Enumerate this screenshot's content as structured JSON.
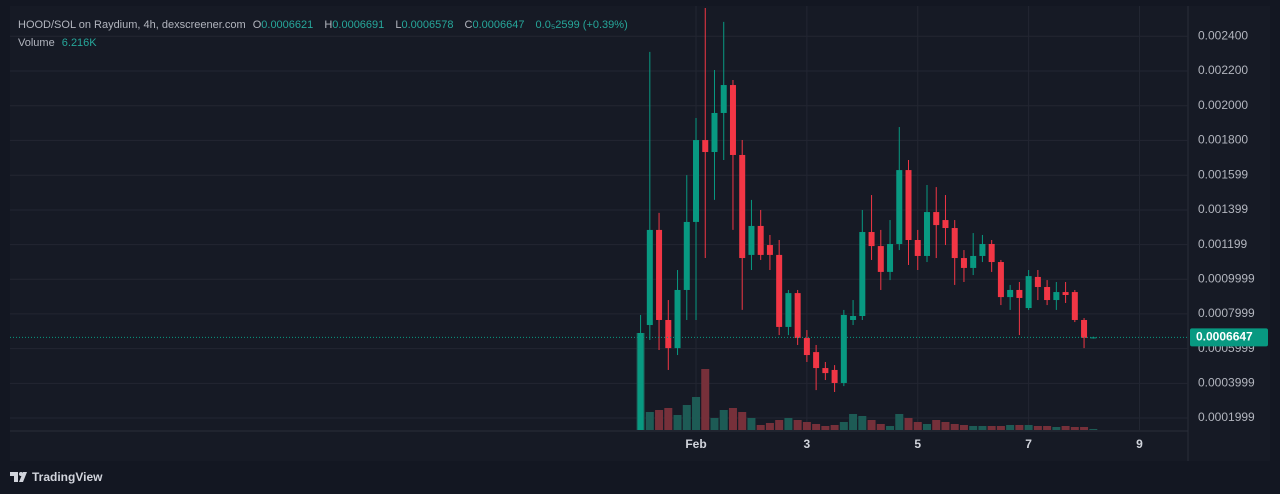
{
  "chart_data": {
    "type": "candlestick",
    "title": "HOOD/SOL on Raydium, 4h, dexscreener.com",
    "ohlc_legend": {
      "open_label": "O",
      "open": 0.0006621,
      "high_label": "H",
      "high": 0.0006691,
      "low_label": "L",
      "low": 0.0006578,
      "close_label": "C",
      "close": 0.0006647,
      "change": "0.0₅2599 (+0.39%)"
    },
    "volume_legend": {
      "label": "Volume",
      "value": "6.216K"
    },
    "x": [
      -24,
      -20,
      -16,
      -12,
      -8,
      -4,
      0,
      4,
      8,
      12,
      16,
      20,
      24,
      28,
      32,
      36,
      40,
      44,
      48,
      52,
      56,
      60,
      64,
      68,
      72,
      76,
      80,
      84,
      88,
      92,
      96,
      100,
      104,
      108,
      112,
      116,
      120,
      124,
      128,
      132,
      136,
      140,
      144,
      148,
      152,
      156,
      160,
      164,
      168,
      172
    ],
    "open": [
      0.000131,
      0.000736,
      0.001284,
      0.000765,
      0.000603,
      0.000938,
      0.00133,
      0.001802,
      0.001733,
      0.001958,
      0.002119,
      0.001716,
      0.00114,
      0.001307,
      0.001197,
      0.00114,
      0.000725,
      0.00092,
      0.000661,
      0.00058,
      0.000488,
      0.000477,
      0.000402,
      0.000765,
      0.000788,
      0.001272,
      0.001191,
      0.001042,
      0.001203,
      0.001629,
      0.001226,
      0.001134,
      0.001387,
      0.001341,
      0.001295,
      0.001122,
      0.001065,
      0.001134,
      0.001203,
      0.001099,
      0.000897,
      0.000938,
      0.000834,
      0.001013,
      0.000955,
      0.00088,
      0.000926,
      0.000926,
      0.000765,
      0.0006621
    ],
    "high": [
      0.000794,
      0.00231,
      0.001382,
      0.00088,
      0.001053,
      0.0016,
      0.001929,
      0.002563,
      0.002206,
      0.002483,
      0.002148,
      0.001802,
      0.001457,
      0.001399,
      0.001255,
      0.001226,
      0.000938,
      0.000938,
      0.000707,
      0.000621,
      0.000523,
      0.000505,
      0.000823,
      0.00088,
      0.001399,
      0.001485,
      0.001284,
      0.001341,
      0.001877,
      0.001687,
      0.001284,
      0.001543,
      0.001531,
      0.001485,
      0.001341,
      0.001168,
      0.001266,
      0.001255,
      0.001226,
      0.001111,
      0.000967,
      0.000984,
      0.001053,
      0.001053,
      0.000995,
      0.000984,
      0.000984,
      0.000938,
      0.000776,
      0.0006691
    ],
    "low": [
      0.000131,
      0.00065,
      0.000592,
      0.000477,
      0.000563,
      0.000765,
      0.000765,
      0.001122,
      0.001457,
      0.001687,
      0.001284,
      0.000823,
      0.001053,
      0.001111,
      0.001053,
      0.000678,
      0.000678,
      0.000621,
      0.000523,
      0.000361,
      0.000419,
      0.00035,
      0.000384,
      0.000736,
      0.000765,
      0.001111,
      0.000938,
      0.000995,
      0.001168,
      0.001082,
      0.001053,
      0.001099,
      0.001122,
      0.001197,
      0.000967,
      0.000984,
      0.001024,
      0.001099,
      0.001042,
      0.000851,
      0.000823,
      0.000678,
      0.000823,
      0.00088,
      0.000851,
      0.000823,
      0.000863,
      0.000753,
      0.000603,
      0.0006578
    ],
    "close": [
      0.00069,
      0.001284,
      0.000765,
      0.000603,
      0.000938,
      0.00133,
      0.001802,
      0.001733,
      0.001958,
      0.002119,
      0.001716,
      0.001122,
      0.001307,
      0.00114,
      0.00114,
      0.000725,
      0.00092,
      0.000661,
      0.000563,
      0.000488,
      0.000459,
      0.000402,
      0.000794,
      0.000788,
      0.001272,
      0.001191,
      0.001042,
      0.001203,
      0.001629,
      0.001226,
      0.001134,
      0.001387,
      0.001312,
      0.001295,
      0.001122,
      0.001065,
      0.001134,
      0.001203,
      0.001099,
      0.000897,
      0.000938,
      0.000892,
      0.001018,
      0.000955,
      0.00088,
      0.000926,
      0.000909,
      0.000765,
      0.000662,
      0.0006647
    ],
    "volume": [
      582000,
      108000,
      120000,
      132000,
      90000,
      150000,
      198000,
      366000,
      72000,
      120000,
      132000,
      108000,
      72000,
      30000,
      42000,
      60000,
      72000,
      60000,
      48000,
      36000,
      24000,
      30000,
      48000,
      96000,
      84000,
      60000,
      36000,
      24000,
      96000,
      72000,
      48000,
      36000,
      60000,
      48000,
      36000,
      30000,
      24000,
      24000,
      24000,
      24000,
      30000,
      30000,
      30000,
      24000,
      24000,
      18000,
      24000,
      18000,
      18000,
      6216
    ],
    "up_color": "#089981",
    "down_color": "#f23645",
    "up_volume_color": "#1d5b55",
    "down_volume_color": "#76303a",
    "xlim": [
      -297,
      213
    ],
    "xticks": [
      {
        "value": 0,
        "label": "Feb"
      },
      {
        "value": 48,
        "label": "3"
      },
      {
        "value": 96,
        "label": "5"
      },
      {
        "value": 144,
        "label": "7"
      },
      {
        "value": 192,
        "label": "9"
      }
    ],
    "ylim": [
      0.000131,
      0.002563
    ],
    "yticks": [
      {
        "value": 0.0024,
        "label": "0.002400"
      },
      {
        "value": 0.0022,
        "label": "0.002200"
      },
      {
        "value": 0.002,
        "label": "0.002000"
      },
      {
        "value": 0.0018,
        "label": "0.001800"
      },
      0.001599,
      0.001399,
      0.001199,
      0.0009999,
      0.0007999,
      0.0005999,
      0.0003999,
      0.0001999
    ],
    "volume_lim": [
      0,
      600000
    ],
    "grid": true,
    "footer": "TradingView"
  }
}
